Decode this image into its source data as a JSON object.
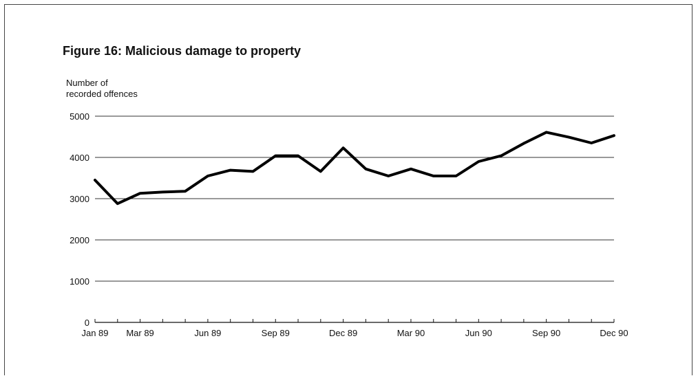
{
  "chart_data": {
    "type": "line",
    "title": "Figure 16:  Malicious damage to property",
    "ylabel_lines": [
      "Number of",
      "recorded offences"
    ],
    "xlabel": "",
    "ylim": [
      0,
      5000
    ],
    "yticks": [
      0,
      1000,
      2000,
      3000,
      4000,
      5000
    ],
    "grid": true,
    "x": [
      "Jan 89",
      "Feb 89",
      "Mar 89",
      "Apr 89",
      "May 89",
      "Jun 89",
      "Jul 89",
      "Aug 89",
      "Sep 89",
      "Oct 89",
      "Nov 89",
      "Dec 89",
      "Jan 90",
      "Feb 90",
      "Mar 90",
      "Apr 90",
      "May 90",
      "Jun 90",
      "Jul 90",
      "Aug 90",
      "Sep 90",
      "Oct 90",
      "Nov 90",
      "Dec 90"
    ],
    "xtick_labels": [
      "Jan 89",
      "Mar 89",
      "Jun 89",
      "Sep 89",
      "Dec 89",
      "Mar 90",
      "Jun 90",
      "Sep 90",
      "Dec 90"
    ],
    "series": [
      {
        "values": [
          3450,
          2880,
          3130,
          3160,
          3180,
          3550,
          3690,
          3660,
          4040,
          4040,
          3660,
          4230,
          3720,
          3550,
          3720,
          3550,
          3550,
          3900,
          4040,
          4340,
          4610,
          4490,
          4350,
          4530
        ],
        "color": "#000000"
      }
    ]
  }
}
